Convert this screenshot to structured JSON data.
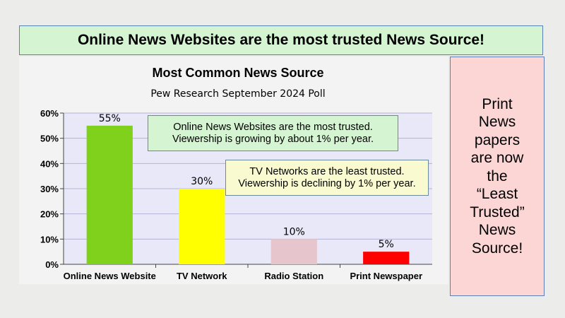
{
  "banner": {
    "title": "Online News Websites are the most trusted News Source!"
  },
  "side_panel": {
    "lines": [
      "Print",
      "News",
      "papers",
      "are now",
      "the",
      "“Least",
      "Trusted”",
      "News",
      "Source!"
    ]
  },
  "annotations": {
    "online": [
      "Online News Websites are the most trusted.",
      "Viewership is growing by about 1% per year."
    ],
    "tv": [
      "TV Networks are the least trusted.",
      "Viewership is declining by 1% per year."
    ]
  },
  "chart_data": {
    "type": "bar",
    "title": "Most Common News Source",
    "subtitle": "Pew Research September 2024 Poll",
    "categories": [
      "Online News Website",
      "TV Network",
      "Radio Station",
      "Print Newspaper"
    ],
    "values": [
      55,
      30,
      10,
      5
    ],
    "value_labels": [
      "55%",
      "30%",
      "10%",
      "5%"
    ],
    "bar_colors": [
      "#7fd11c",
      "#ffff00",
      "#e6c6cc",
      "#ff0000"
    ],
    "ylim": [
      0,
      60
    ],
    "yticks": [
      0,
      10,
      20,
      30,
      40,
      50,
      60
    ],
    "ytick_labels": [
      "0%",
      "10%",
      "20%",
      "30%",
      "40%",
      "50%",
      "60%"
    ],
    "grid": true,
    "plot_background": "#e8e8f8",
    "grid_color": "#b4b4d4"
  }
}
